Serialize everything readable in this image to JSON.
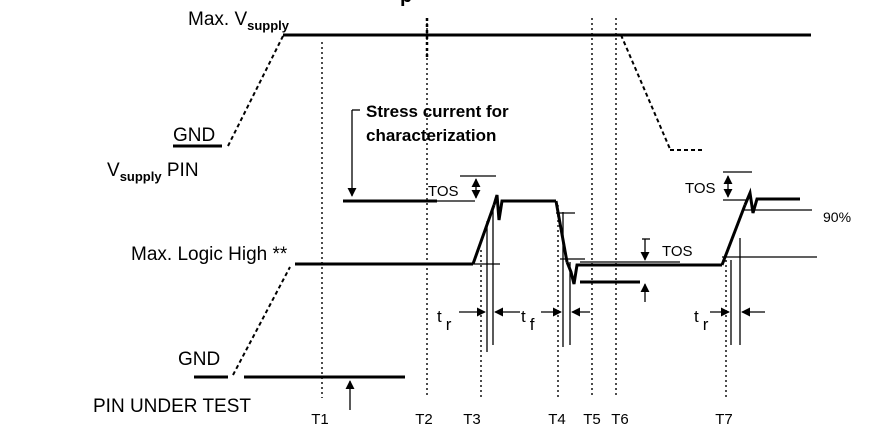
{
  "heading_fragment": "p",
  "supply": {
    "max_label_main": "Max. V",
    "max_label_sub": "supply",
    "gnd_label": "GND",
    "pin_label_main": "V",
    "pin_label_sub": "supply",
    "pin_label_rest": " PIN"
  },
  "stress": {
    "line1": "Stress current for",
    "line2": "characterization"
  },
  "pin_under_test": {
    "max_logic_label": "Max. Logic High **",
    "gnd_label": "GND",
    "pin_label": "PIN UNDER TEST"
  },
  "annotations": {
    "tos_1": "TOS",
    "tos_2": "TOS",
    "tos_3": "TOS",
    "percent": "90%",
    "tr_main": "t",
    "tr_sub": "r",
    "tf_main": "t",
    "tf_sub": "f",
    "tr2_main": "t",
    "tr2_sub": "r"
  },
  "time_markers": [
    "T1",
    "T2",
    "T3",
    "T4",
    "T5",
    "T6",
    "T7"
  ]
}
